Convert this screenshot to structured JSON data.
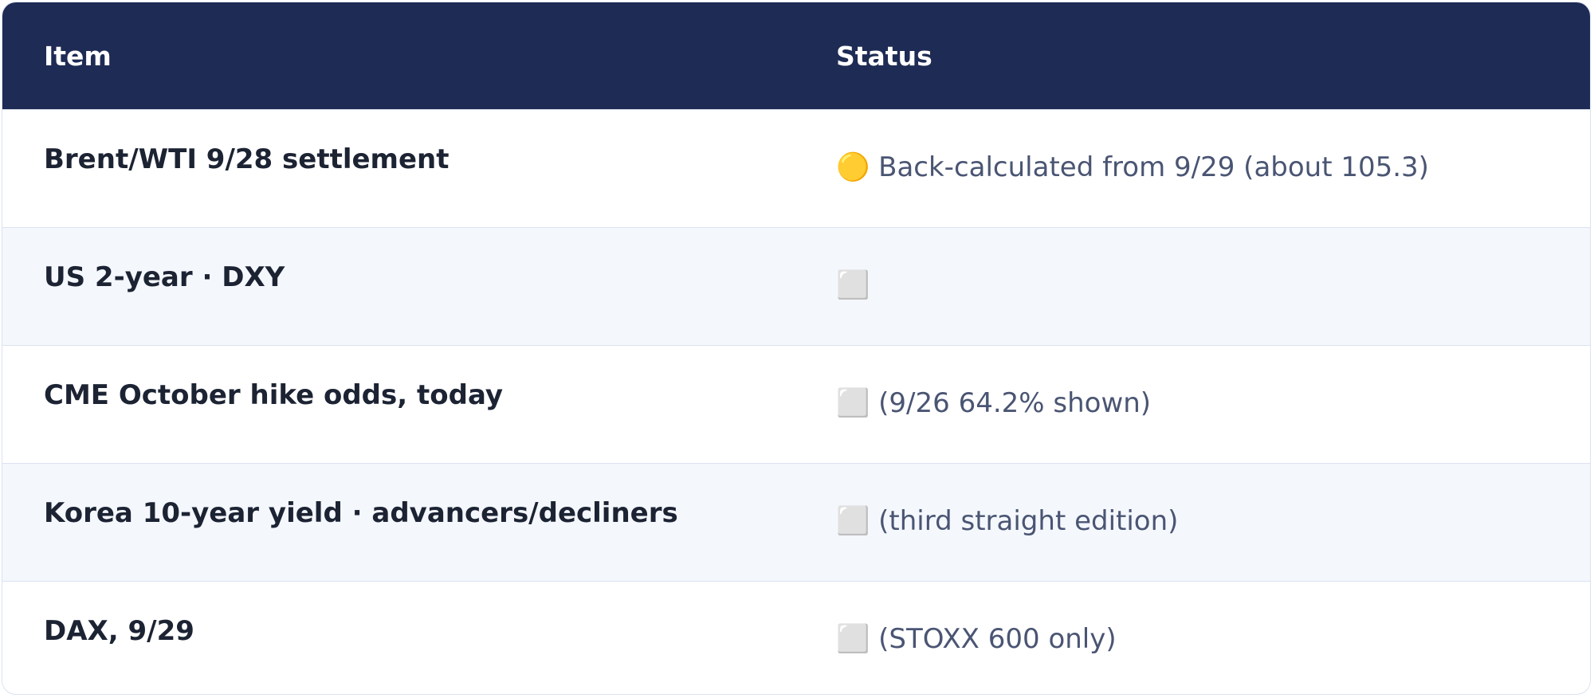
{
  "table": {
    "header": [
      "Item",
      "Status"
    ],
    "rows": [
      [
        "Brent/WTI 9/28 settlement",
        "🟡 Back-calculated from 9/29 (about 105.3)"
      ],
      [
        "US 2-year · DXY",
        "⬜"
      ],
      [
        "CME October hike odds, today",
        "⬜ (9/26 64.2% shown)"
      ],
      [
        "Korea 10-year yield · advancers/decliners",
        "⬜ (third straight edition)"
      ],
      [
        "DAX, 9/29",
        "⬜ (STOXX 600 only)"
      ]
    ]
  }
}
